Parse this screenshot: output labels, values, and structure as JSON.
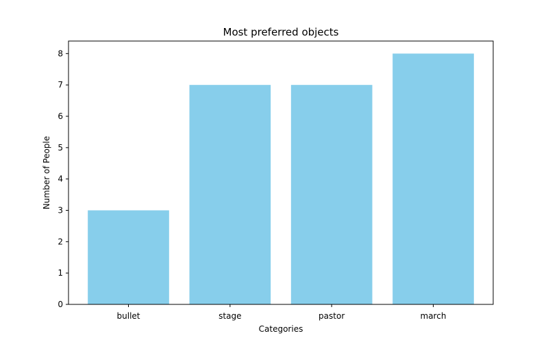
{
  "chart_data": {
    "type": "bar",
    "title": "Most preferred objects",
    "xlabel": "Categories",
    "ylabel": "Number of People",
    "categories": [
      "bullet",
      "stage",
      "pastor",
      "march"
    ],
    "values": [
      3,
      7,
      7,
      8
    ],
    "ylim": [
      0,
      8.4
    ],
    "yticks": [
      0,
      1,
      2,
      3,
      4,
      5,
      6,
      7,
      8
    ],
    "bar_color": "#87ceeb",
    "grid": false,
    "legend": "none"
  }
}
